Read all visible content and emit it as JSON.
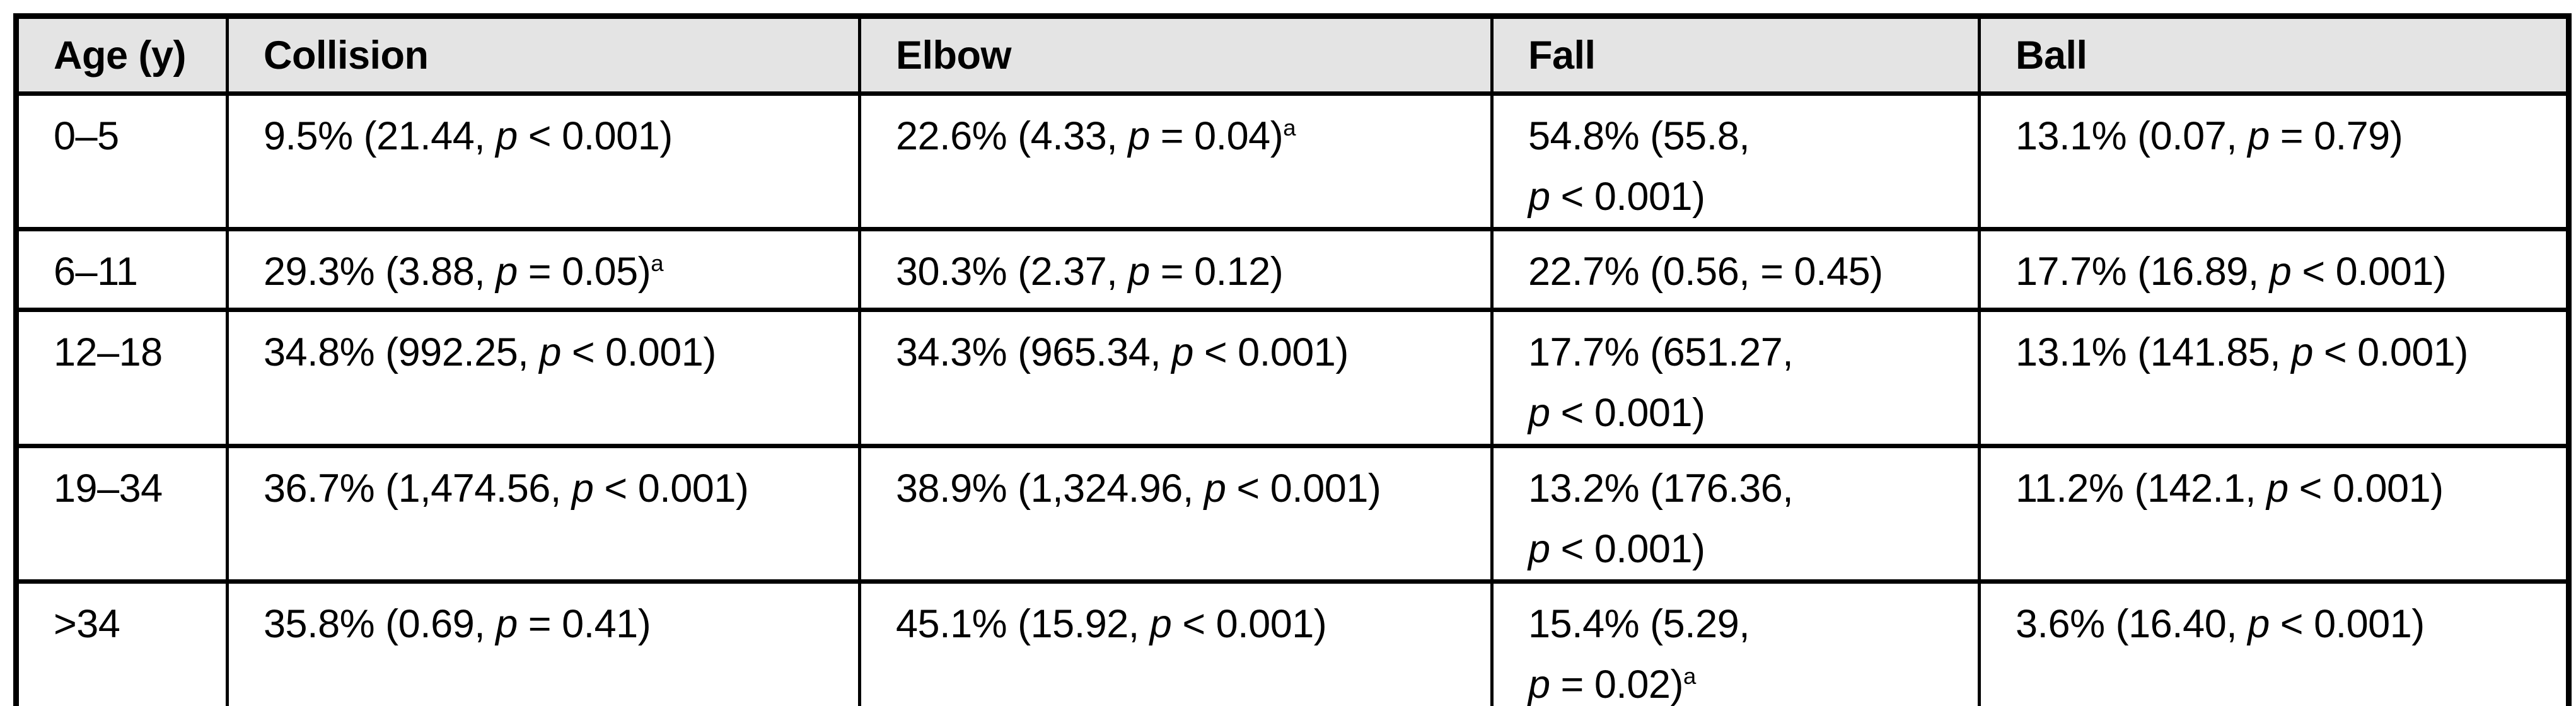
{
  "table": {
    "header_bg": "#e4e4e4",
    "border_color": "#000000",
    "columns": [
      {
        "label": "Age (y)"
      },
      {
        "label": "Collision"
      },
      {
        "label": "Elbow"
      },
      {
        "label": "Fall"
      },
      {
        "label": "Ball"
      }
    ],
    "rows": [
      {
        "age": "0–5",
        "collision": "9.5% (21.44, *p* < 0.001)",
        "elbow": "22.6% (4.33, *p* = 0.04)^a",
        "fall": "54.8% (55.8,\n*p* < 0.001)",
        "ball": "13.1% (0.07, *p* = 0.79)"
      },
      {
        "age": "6–11",
        "collision": "29.3% (3.88, *p* = 0.05)^a",
        "elbow": "30.3% (2.37, *p* = 0.12)",
        "fall": "22.7% (0.56, = 0.45)",
        "ball": "17.7% (16.89, *p* < 0.001)"
      },
      {
        "age": "12–18",
        "collision": "34.8% (992.25, *p* < 0.001)",
        "elbow": "34.3% (965.34, *p* < 0.001)",
        "fall": "17.7% (651.27,\n*p* < 0.001)",
        "ball": "13.1% (141.85, *p* < 0.001)"
      },
      {
        "age": "19–34",
        "collision": "36.7% (1,474.56, *p* < 0.001)",
        "elbow": "38.9% (1,324.96, *p* < 0.001)",
        "fall": "13.2% (176.36,\n*p* < 0.001)",
        "ball": "11.2% (142.1, *p* < 0.001)"
      },
      {
        "age": ">34",
        "collision": "35.8% (0.69, *p* = 0.41)",
        "elbow": "45.1% (15.92, *p* < 0.001)",
        "fall": "15.4% (5.29,\n*p* = 0.02)^a",
        "ball": "3.6% (16.40, *p* < 0.001)"
      }
    ]
  }
}
